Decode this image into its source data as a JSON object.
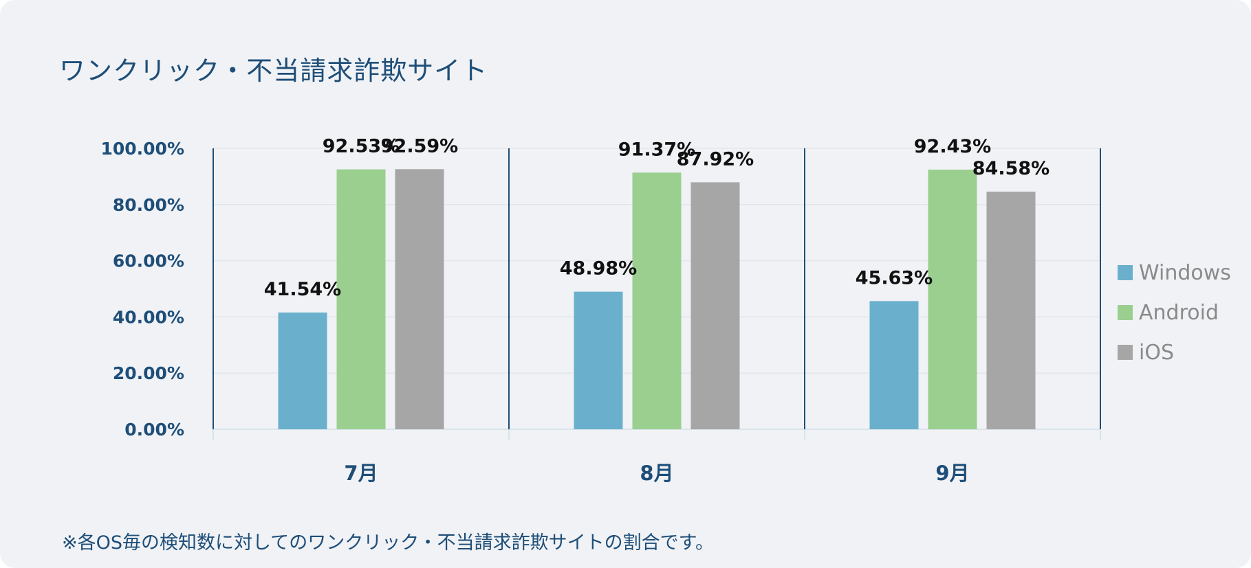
{
  "title": "ワンクリック・不当請求詐欺サイト",
  "footnote": "※各OS毎の検知数に対してのワンクリック・不当請求詐欺サイトの割合です。",
  "colors": {
    "background": "#f0f2f6",
    "axis_text": "#1e4e78",
    "Windows": "#6ab0cc",
    "Android": "#9bcf8f",
    "iOS": "#a6a6a6"
  },
  "chart_data": {
    "type": "bar",
    "title": "ワンクリック・不当請求詐欺サイト",
    "categories": [
      "7月",
      "8月",
      "9月"
    ],
    "series": [
      {
        "name": "Windows",
        "values": [
          41.54,
          48.98,
          45.63
        ],
        "labels": [
          "41.54%",
          "48.98%",
          "45.63%"
        ]
      },
      {
        "name": "Android",
        "values": [
          92.53,
          91.37,
          92.43
        ],
        "labels": [
          "92.53%",
          "91.37%",
          "92.43%"
        ]
      },
      {
        "name": "iOS",
        "values": [
          92.59,
          87.92,
          84.58
        ],
        "labels": [
          "92.59%",
          "87.92%",
          "84.58%"
        ]
      }
    ],
    "ylim": [
      0,
      100
    ],
    "yticks": [
      0,
      20,
      40,
      60,
      80,
      100
    ],
    "ytick_labels": [
      "0.00%",
      "20.00%",
      "40.00%",
      "60.00%",
      "80.00%",
      "100.00%"
    ],
    "xlabel": "",
    "ylabel": "",
    "grid": true,
    "legend_position": "right"
  }
}
